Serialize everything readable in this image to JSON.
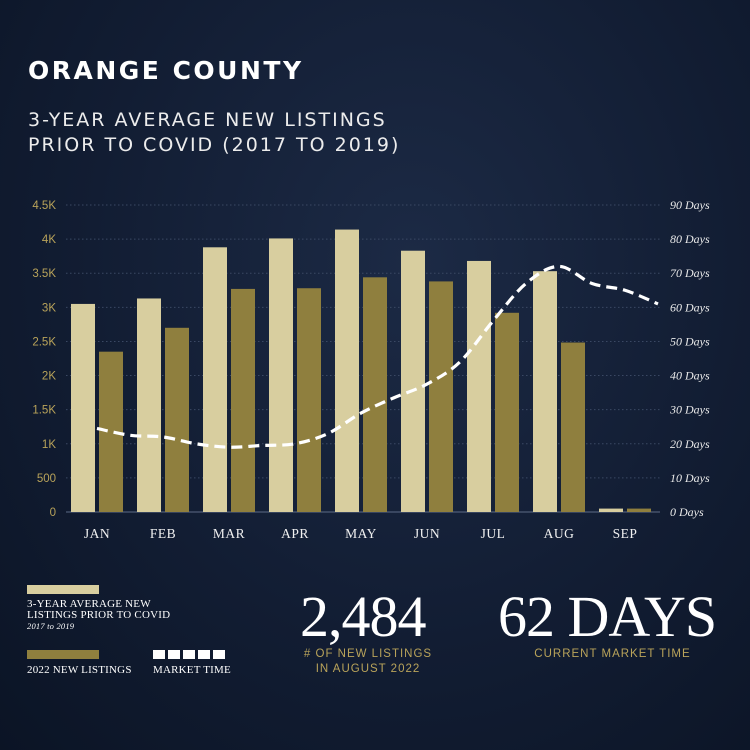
{
  "header": {
    "title": "ORANGE COUNTY",
    "subtitle_line1": "3-YEAR AVERAGE NEW LISTINGS",
    "subtitle_line2": "PRIOR TO COVID (2017 TO 2019)"
  },
  "colors": {
    "avg_bar": "#d8ce9f",
    "current_bar": "#8f7f3e",
    "line": "#ffffff",
    "accent": "#b9a35a",
    "background": "#121d33"
  },
  "chart_data": {
    "type": "bar",
    "categories": [
      "JAN",
      "FEB",
      "MAR",
      "APR",
      "MAY",
      "JUN",
      "JUL",
      "AUG",
      "SEP"
    ],
    "series": [
      {
        "name": "3-YEAR AVERAGE NEW LISTINGS PRIOR TO COVID 2017 to 2019",
        "type": "bar",
        "axis": "left",
        "values": [
          3050,
          3130,
          3880,
          4010,
          4140,
          3830,
          3680,
          3530,
          50
        ]
      },
      {
        "name": "2022 NEW LISTINGS",
        "type": "bar",
        "axis": "left",
        "values": [
          2350,
          2700,
          3270,
          3280,
          3440,
          3380,
          2920,
          2484,
          50
        ]
      },
      {
        "name": "MARKET TIME",
        "type": "line",
        "style": "dashed",
        "axis": "right",
        "x": [
          0,
          0.5,
          1,
          1.5,
          2,
          2.5,
          3,
          3.5,
          4,
          4.5,
          5,
          5.5,
          6,
          6.5,
          7,
          7.5,
          8,
          8.5
        ],
        "values": [
          24.5,
          22.5,
          22,
          20,
          19,
          19.5,
          20,
          23,
          29,
          33.5,
          37.5,
          44,
          56,
          67,
          72,
          67,
          65,
          61
        ]
      }
    ],
    "left_axis": {
      "ylim": [
        0,
        4500
      ],
      "ticks": [
        "0",
        "500",
        "1K",
        "1.5K",
        "2K",
        "2.5K",
        "3K",
        "3.5K",
        "4K",
        "4.5K"
      ]
    },
    "right_axis": {
      "ylim": [
        0,
        90
      ],
      "ticks": [
        "0 Days",
        "10 Days",
        "20 Days",
        "30 Days",
        "40 Days",
        "50 Days",
        "60 Days",
        "70 Days",
        "80 Days",
        "90 Days"
      ]
    },
    "grid": "horizontal dotted",
    "legend": "bottom-left"
  },
  "legend": {
    "avg_line1": "3-YEAR AVERAGE NEW",
    "avg_line2": "LISTINGS PRIOR TO COVID",
    "avg_line3": "2017 to 2019",
    "current": "2022 NEW LISTINGS",
    "market_time": "MARKET TIME"
  },
  "stats": {
    "listings_value": "2,484",
    "listings_caption_line1": "# OF NEW LISTINGS",
    "listings_caption_line2": "IN AUGUST 2022",
    "market_value": "62 DAYS",
    "market_caption": "CURRENT MARKET TIME"
  }
}
